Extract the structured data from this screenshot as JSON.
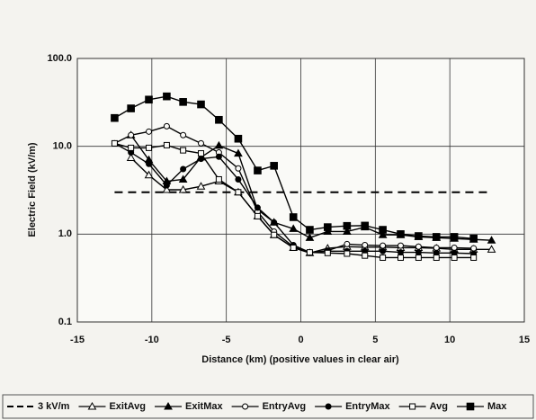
{
  "chart_data": {
    "type": "line",
    "xlabel": "Distance (km) (positive values in clear air)",
    "ylabel": "Electric Field (kV/m)",
    "xlim": [
      -15,
      15
    ],
    "xticks": [
      -15,
      -10,
      -5,
      0,
      5,
      10,
      15
    ],
    "ylim": [
      0.1,
      100
    ],
    "ylog": true,
    "yticks": [
      0.1,
      {
        "value": 1,
        "label": "1.0"
      },
      {
        "value": 10,
        "label": "10.0"
      },
      {
        "value": 100,
        "label": "100.0"
      }
    ],
    "grid": true,
    "legend": "bottom",
    "series": [
      {
        "name": "3 kV/m",
        "color": "#000000",
        "dash": true,
        "marker": "none",
        "x": [
          -12.5,
          12.5
        ],
        "values": [
          3,
          3
        ]
      },
      {
        "name": "ExitAvg",
        "color": "#000000",
        "marker": "triangle-open",
        "x": [
          -11.4,
          -10.2,
          -9.0,
          -7.9,
          -6.7,
          -5.5,
          -4.2,
          -2.9,
          -1.8,
          -0.5,
          0.6,
          1.8,
          3.1,
          4.3,
          5.5,
          6.7,
          7.9,
          9.1,
          10.3,
          11.6,
          12.8
        ],
        "values": [
          7.4,
          4.7,
          3.2,
          3.2,
          3.5,
          4.0,
          3.0,
          1.6,
          0.98,
          0.7,
          0.61,
          0.69,
          0.72,
          0.71,
          0.71,
          0.7,
          0.7,
          0.69,
          0.67,
          0.67,
          0.67
        ]
      },
      {
        "name": "ExitMax",
        "color": "#000000",
        "marker": "triangle",
        "x": [
          -11.4,
          -10.2,
          -9.0,
          -7.9,
          -6.7,
          -5.5,
          -4.2,
          -2.9,
          -1.8,
          -0.5,
          0.6,
          1.8,
          3.1,
          4.3,
          5.5,
          6.7,
          7.9,
          9.1,
          10.3,
          11.6,
          12.8
        ],
        "values": [
          13.4,
          7.0,
          4.0,
          4.2,
          7.5,
          10.2,
          8.3,
          1.9,
          1.36,
          1.15,
          0.91,
          1.07,
          1.07,
          1.2,
          0.98,
          0.98,
          0.93,
          0.91,
          0.89,
          0.87,
          0.85
        ]
      },
      {
        "name": "EntryAvg",
        "color": "#000000",
        "marker": "circle-open",
        "x": [
          -12.5,
          -11.4,
          -10.2,
          -9.0,
          -7.9,
          -6.7,
          -5.5,
          -4.2,
          -2.9,
          -1.8,
          -0.5,
          0.6,
          1.8,
          3.1,
          4.3,
          5.5,
          6.7,
          7.9,
          9.1,
          10.3,
          11.6
        ],
        "values": [
          10.8,
          13.4,
          14.7,
          16.9,
          13.4,
          10.8,
          8.5,
          5.6,
          1.8,
          1.07,
          0.72,
          0.61,
          0.65,
          0.77,
          0.75,
          0.74,
          0.74,
          0.72,
          0.7,
          0.7,
          0.69
        ]
      },
      {
        "name": "EntryMax",
        "color": "#000000",
        "marker": "circle",
        "x": [
          -12.5,
          -11.4,
          -10.2,
          -9.0,
          -7.9,
          -6.7,
          -5.5,
          -4.2,
          -2.9,
          -1.8,
          -0.5,
          0.6,
          1.8,
          3.1,
          4.3,
          5.5,
          6.7,
          7.9,
          9.1,
          10.3,
          11.6
        ],
        "values": [
          10.8,
          8.5,
          6.3,
          3.6,
          5.5,
          7.2,
          7.6,
          4.2,
          2.0,
          1.36,
          0.75,
          0.62,
          0.64,
          0.64,
          0.64,
          0.64,
          0.62,
          0.62,
          0.61,
          0.61,
          0.6
        ]
      },
      {
        "name": "Avg",
        "color": "#000000",
        "marker": "square-open",
        "x": [
          -12.5,
          -11.4,
          -10.2,
          -9.0,
          -7.9,
          -6.7,
          -5.5,
          -4.2,
          -2.9,
          -1.8,
          -0.5,
          0.6,
          1.8,
          3.1,
          4.3,
          5.5,
          6.7,
          7.9,
          9.1,
          10.3,
          11.6
        ],
        "values": [
          10.8,
          9.6,
          9.6,
          10.3,
          9.0,
          8.3,
          4.2,
          3.0,
          1.6,
          0.98,
          0.7,
          0.62,
          0.61,
          0.6,
          0.57,
          0.54,
          0.54,
          0.54,
          0.54,
          0.54,
          0.54
        ]
      },
      {
        "name": "Max",
        "color": "#000000",
        "marker": "square",
        "x": [
          -12.5,
          -11.4,
          -10.2,
          -9.0,
          -7.9,
          -6.7,
          -5.5,
          -4.2,
          -2.9,
          -1.8,
          -0.5,
          0.6,
          1.8,
          3.1,
          4.3,
          5.5,
          6.7,
          7.9,
          9.1,
          10.3,
          11.6
        ],
        "values": [
          21,
          27,
          34,
          37,
          32,
          30,
          20,
          12.2,
          5.3,
          6.0,
          1.56,
          1.12,
          1.2,
          1.24,
          1.25,
          1.12,
          1.0,
          0.95,
          0.93,
          0.93,
          0.89
        ]
      }
    ]
  }
}
